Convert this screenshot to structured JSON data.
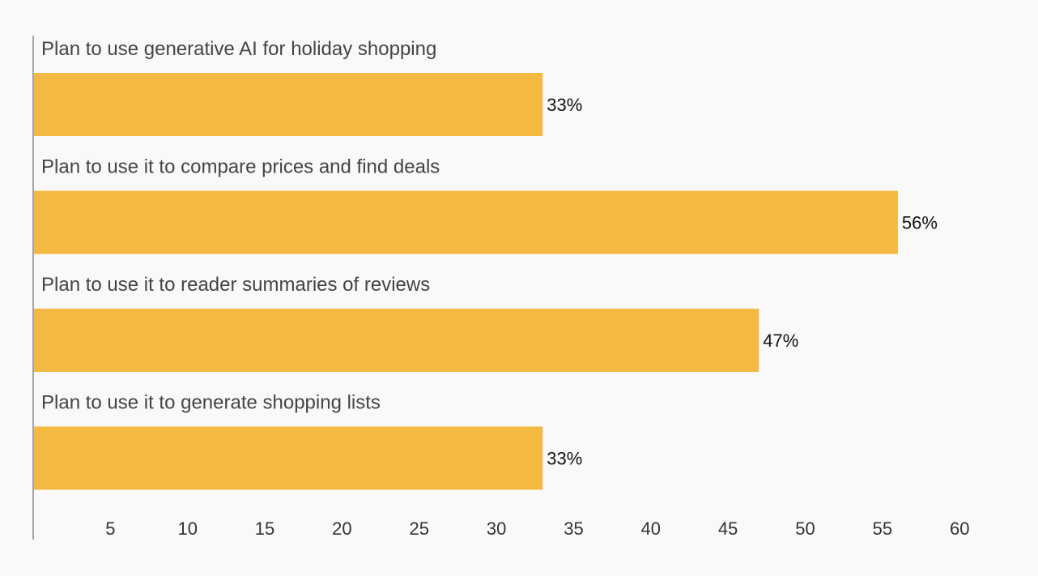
{
  "chart_data": {
    "type": "bar",
    "orientation": "horizontal",
    "categories": [
      "Plan to use generative AI for holiday shopping",
      "Plan to use it to compare prices and find deals",
      "Plan to use it to reader summaries of reviews",
      "Plan to use it to generate shopping lists"
    ],
    "values": [
      33,
      56,
      47,
      33
    ],
    "value_labels": [
      "33%",
      "56%",
      "47%",
      "33%"
    ],
    "bar_color": "#f4b942",
    "xlim": [
      0,
      62
    ],
    "x_ticks": [
      5,
      10,
      15,
      20,
      25,
      30,
      35,
      40,
      45,
      50,
      55,
      60
    ],
    "title": "",
    "xlabel": "",
    "ylabel": "",
    "grid": false,
    "legend": "none"
  }
}
